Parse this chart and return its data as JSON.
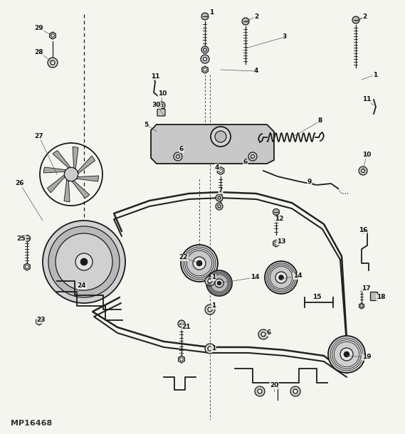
{
  "watermark": "MP16468",
  "bg_color": "#f5f5f0",
  "line_color": "#1a1a1a",
  "fig_width": 5.69,
  "fig_height": 6.1,
  "dpi": 100
}
